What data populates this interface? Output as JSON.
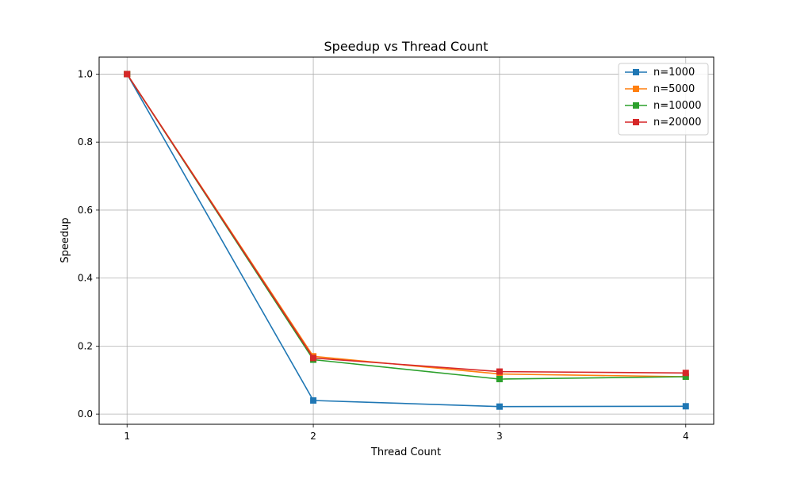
{
  "chart_data": {
    "type": "line",
    "title": "Speedup vs Thread Count",
    "xlabel": "Thread Count",
    "ylabel": "Speedup",
    "x": [
      1,
      2,
      3,
      4
    ],
    "xticks": [
      "1",
      "2",
      "3",
      "4"
    ],
    "yticks": [
      "0.0",
      "0.2",
      "0.4",
      "0.6",
      "0.8",
      "1.0"
    ],
    "xlim": [
      0.85,
      4.15
    ],
    "ylim": [
      -0.03,
      1.05
    ],
    "grid": true,
    "legend_position": "top-right",
    "marker": "square",
    "series": [
      {
        "name": "n=1000",
        "color": "#1f77b4",
        "values": [
          1.0,
          0.04,
          0.022,
          0.023
        ]
      },
      {
        "name": "n=5000",
        "color": "#ff7f0e",
        "values": [
          1.0,
          0.17,
          0.118,
          0.11
        ]
      },
      {
        "name": "n=10000",
        "color": "#2ca02c",
        "values": [
          1.0,
          0.16,
          0.103,
          0.11
        ]
      },
      {
        "name": "n=20000",
        "color": "#d62728",
        "values": [
          1.0,
          0.165,
          0.125,
          0.121
        ]
      }
    ]
  }
}
